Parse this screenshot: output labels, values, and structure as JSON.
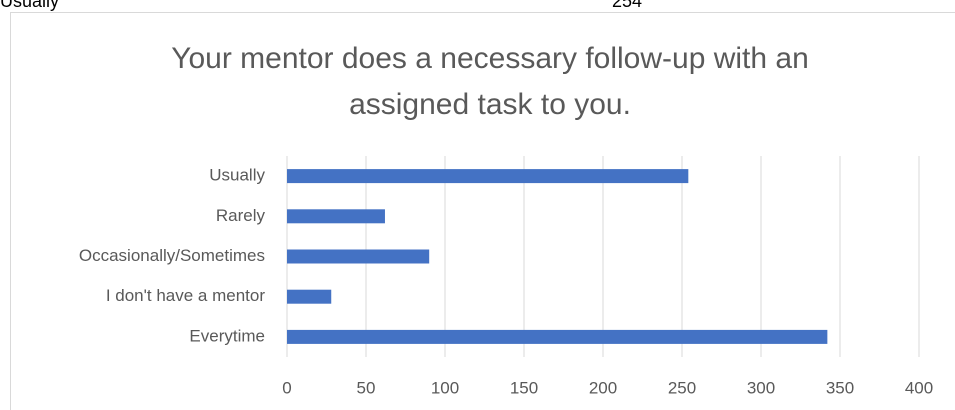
{
  "sheet_cells": [
    "Usually",
    "254"
  ],
  "chart_data": {
    "type": "barh",
    "title": [
      "Your mentor does a necessary follow-up with an",
      "assigned task to you."
    ],
    "categories": [
      "Everytime",
      "I don't have a mentor",
      "Occasionally/Sometimes",
      "Rarely",
      "Usually"
    ],
    "values": [
      342,
      28,
      90,
      62,
      254
    ],
    "color": "#4472c4",
    "xlim": [
      0,
      400
    ],
    "xticks": [
      0,
      50,
      100,
      150,
      200,
      250,
      300,
      350,
      400
    ],
    "grid": true
  }
}
